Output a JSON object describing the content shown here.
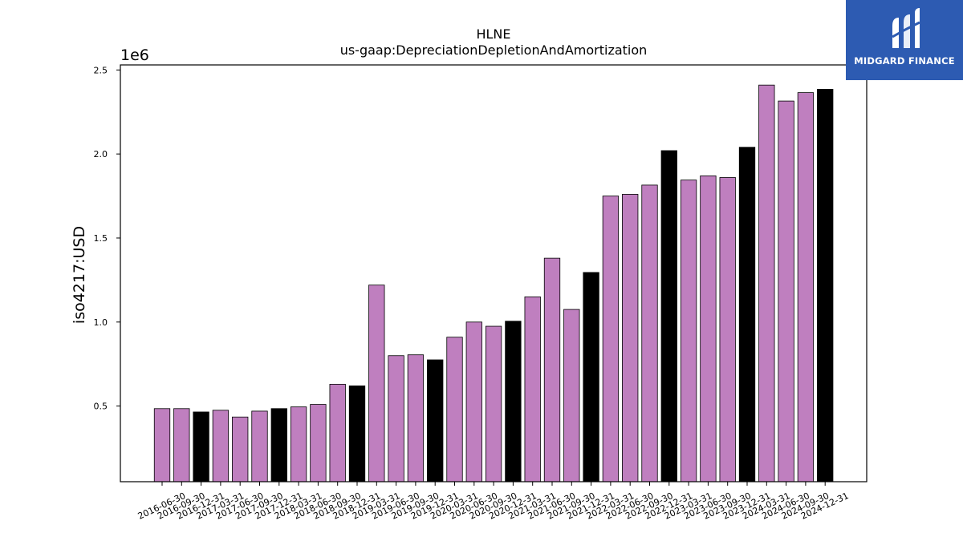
{
  "brand": {
    "name": "MIDGARD FINANCE",
    "color": "#2d5bb2",
    "icon": "midgard-logo-icon"
  },
  "chart_data": {
    "type": "bar",
    "title": "HLNE",
    "subtitle": "us-gaap:DepreciationDepletionAndAmortization",
    "ylabel": "iso4217:USD",
    "xlabel": "",
    "y_multiplier_label": "1e6",
    "ylim": [
      50000,
      2530000
    ],
    "yticks": [
      0.5,
      1.0,
      1.5,
      2.0,
      2.5
    ],
    "colors": {
      "quarter": "#bf7fbf",
      "fiscal_year_end": "#000000"
    },
    "categories": [
      "2016-06-30",
      "2016-09-30",
      "2016-12-31",
      "2017-03-31",
      "2017-06-30",
      "2017-09-30",
      "2017-12-31",
      "2018-03-31",
      "2018-06-30",
      "2018-09-30",
      "2018-12-31",
      "2019-03-31",
      "2019-06-30",
      "2019-09-30",
      "2019-12-31",
      "2020-03-31",
      "2020-06-30",
      "2020-09-30",
      "2020-12-31",
      "2021-03-31",
      "2021-06-30",
      "2021-09-30",
      "2021-12-31",
      "2022-03-31",
      "2022-06-30",
      "2022-09-30",
      "2022-12-31",
      "2023-03-31",
      "2023-06-30",
      "2023-09-30",
      "2023-12-31",
      "2024-03-31",
      "2024-06-30",
      "2024-09-30",
      "2024-12-31"
    ],
    "values": [
      485000,
      485000,
      465000,
      475000,
      435000,
      470000,
      485000,
      495000,
      510000,
      630000,
      620000,
      1220000,
      800000,
      805000,
      775000,
      910000,
      1000000,
      975000,
      1005000,
      1150000,
      1380000,
      1075000,
      1295000,
      1750000,
      1760000,
      1815000,
      2020000,
      1845000,
      1870000,
      1860000,
      2040000,
      2410000,
      2315000,
      2365000,
      2385000
    ],
    "highlight": [
      false,
      false,
      true,
      false,
      false,
      false,
      true,
      false,
      false,
      false,
      true,
      false,
      false,
      false,
      true,
      false,
      false,
      false,
      true,
      false,
      false,
      false,
      true,
      false,
      false,
      false,
      true,
      false,
      false,
      false,
      true,
      false,
      false,
      false,
      true
    ]
  }
}
